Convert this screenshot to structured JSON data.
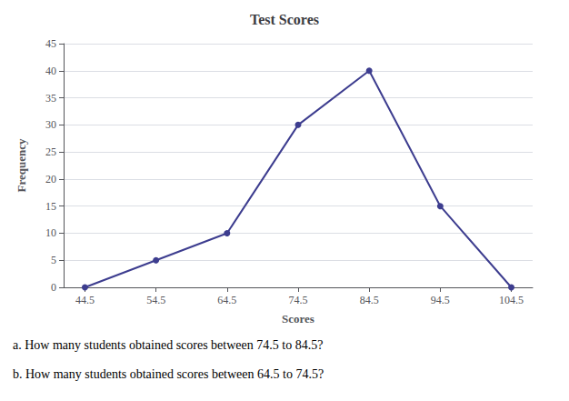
{
  "chart_data": {
    "type": "line",
    "title": "Test Scores",
    "xlabel": "Scores",
    "ylabel": "Frequency",
    "x": [
      44.5,
      54.5,
      64.5,
      74.5,
      84.5,
      94.5,
      104.5
    ],
    "values": [
      0,
      5,
      10,
      30,
      40,
      15,
      0
    ],
    "color": "#3d3d8f",
    "marker": "circle",
    "xlim": [
      41.5,
      107.5
    ],
    "xticks": [
      44.5,
      54.5,
      64.5,
      74.5,
      84.5,
      94.5,
      104.5
    ],
    "ylim": [
      0,
      45
    ],
    "yticks": [
      0,
      5,
      10,
      15,
      20,
      25,
      30,
      35,
      40,
      45
    ],
    "grid": "y",
    "annotations": [
      "a. How many students obtained scores between 74.5 to 84.5?",
      "b. How many students obtained scores between 64.5 to 74.5?"
    ]
  }
}
